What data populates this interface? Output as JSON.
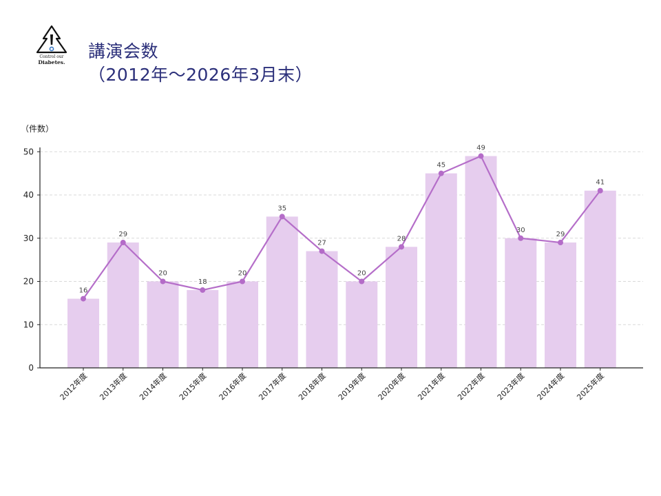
{
  "logo": {
    "line1": "Control our",
    "line2": "Diabetes."
  },
  "title": {
    "line1": "講演会数",
    "line2": "（2012年～2026年3月末）"
  },
  "colors": {
    "bar": "#e6cdee",
    "line": "#b56ec9",
    "marker": "#b46cc8",
    "grid": "#d9d9d9",
    "axis": "#222222",
    "title": "#2b2f7a"
  },
  "chart_data": {
    "type": "bar",
    "title": "",
    "xlabel": "",
    "ylabel": "（件数）",
    "ylim": [
      0,
      51
    ],
    "yticks": [
      0,
      10,
      20,
      30,
      40,
      50
    ],
    "grid": true,
    "categories": [
      "2012年度",
      "2013年度",
      "2014年度",
      "2015年度",
      "2016年度",
      "2017年度",
      "2018年度",
      "2019年度",
      "2020年度",
      "2021年度",
      "2022年度",
      "2023年度",
      "2024年度",
      "2025年度"
    ],
    "values": [
      16,
      29,
      20,
      18,
      20,
      35,
      27,
      20,
      28,
      45,
      49,
      30,
      29,
      41
    ],
    "data_labels": [
      "16",
      "29",
      "20",
      "18",
      "20",
      "35",
      "27",
      "20",
      "28",
      "45",
      "49",
      "30",
      "29",
      "41"
    ],
    "overlay": "line"
  }
}
